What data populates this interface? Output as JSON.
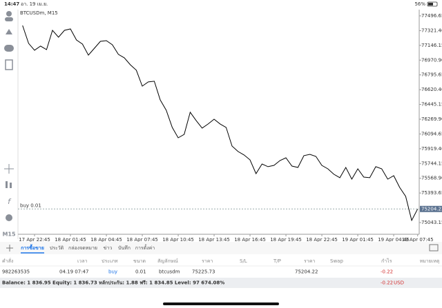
{
  "status_bar": {
    "time": "14:47",
    "date": "อา. 19 เม.ย.",
    "battery": "56%"
  },
  "toolbar": {
    "timeframe": "M15"
  },
  "chart_data": {
    "type": "line",
    "title": "BTCUSDm, M15",
    "color": "#000000",
    "categories": [
      null,
      null,
      "17 Apr 22:45",
      null,
      null,
      null,
      null,
      null,
      "18 Apr 01:45",
      null,
      null,
      null,
      null,
      null,
      "18 Apr 04:45",
      null,
      null,
      null,
      null,
      null,
      "18 Apr 07:45",
      null,
      null,
      null,
      null,
      null,
      "18 Apr 10:45",
      null,
      null,
      null,
      null,
      null,
      "18 Apr 13:45",
      null,
      null,
      null,
      null,
      null,
      "18 Apr 16:45",
      null,
      null,
      null,
      null,
      null,
      "18 Apr 19:45",
      null,
      null,
      null,
      null,
      null,
      "18 Apr 22:45",
      null,
      null,
      null,
      null,
      null,
      "19 Apr 01:45",
      null,
      null,
      null,
      null,
      null,
      "19 Apr 04:45",
      null,
      null,
      null,
      "19 Apr 07:45"
    ],
    "values": [
      77382,
      77170,
      77088,
      77137,
      77096,
      77325,
      77243,
      77325,
      77341,
      77210,
      77161,
      77030,
      77112,
      77194,
      77202,
      77153,
      77039,
      76998,
      76916,
      76851,
      76662,
      76712,
      76720,
      76499,
      76376,
      76172,
      76049,
      76090,
      76352,
      76254,
      76164,
      76213,
      76270,
      76213,
      76172,
      75951,
      75886,
      75845,
      75787,
      75624,
      75738,
      75706,
      75722,
      75779,
      75812,
      75714,
      75697,
      75837,
      75853,
      75828,
      75722,
      75681,
      75616,
      75575,
      75697,
      75558,
      75681,
      75583,
      75575,
      75706,
      75681,
      75558,
      75599,
      75460,
      75354,
      75068,
      75204
    ],
    "ylim": [
      74904,
      77570
    ],
    "yticks": [
      77496.65,
      {
        "value": 77321.4,
        "label": "77321.40"
      },
      77146.15,
      {
        "value": 76970.9,
        "label": "76970.90"
      },
      76795.65,
      {
        "value": 76620.4,
        "label": "76620.40"
      },
      76445.15,
      {
        "value": 76269.9,
        "label": "76269.90"
      },
      76094.65,
      {
        "value": 75919.4,
        "label": "75919.40"
      },
      75744.15,
      {
        "value": 75568.9,
        "label": "75568.90"
      },
      75393.65,
      75043.15
    ],
    "current_price": 75204.22,
    "order_label": "buy 0.01",
    "grid": false
  },
  "tabs": [
    "การซื้อขาย",
    "ประวัติ",
    "กล่องจดหมาย",
    "ข่าว",
    "บันทึก",
    "การตั้งค่า"
  ],
  "table": {
    "headers": [
      "คำสั่ง",
      "เวลา",
      "ประเภท",
      "ขนาด",
      "สัญลักษณ์",
      "ราคา",
      "S/L",
      "T/P",
      "ราคา",
      "Swap",
      "กำไร",
      "หมายเหตุ"
    ],
    "row": {
      "order": "982263535",
      "time": "04.19 07:47",
      "type": "buy",
      "volume": "0.01",
      "symbol": "btcusdm",
      "open_price": "75225.73",
      "price": "75204.22",
      "profit": "-0.22"
    }
  },
  "balance": "Balance: 1 836.95 Equity: 1 836.73 หลักประกัน: 1.88 ฟรี: 1 834.85 Level: 97 674.08%",
  "total_profit": "-0.22",
  "currency": "USD"
}
